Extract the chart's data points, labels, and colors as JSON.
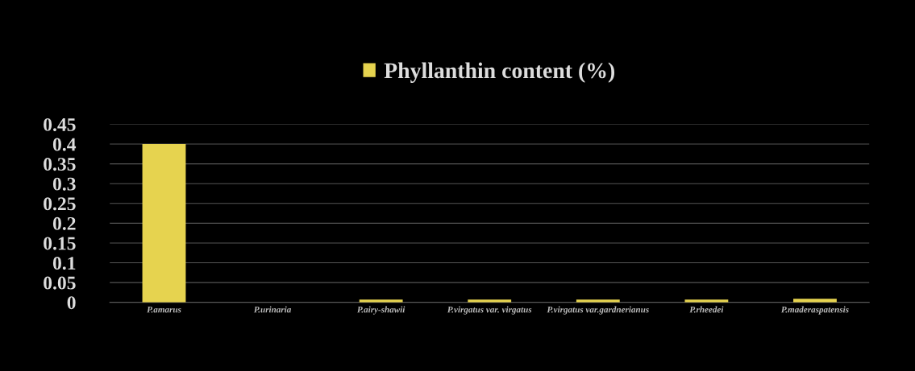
{
  "chart_data": {
    "type": "bar",
    "categories": [
      "P.amarus",
      "P.urinaria",
      "P.airy-shawii",
      "P.virgatus var. virgatus",
      "P.virgatus var.gardnerianus",
      "P.rheedei",
      "P.maderaspatensis"
    ],
    "series": [
      {
        "name": "Phyllanthin content (%)",
        "color": "#e6d34f",
        "values": [
          0.4,
          0,
          0.007,
          0.007,
          0.007,
          0.007,
          0.009
        ]
      }
    ],
    "ylim": [
      0,
      0.45
    ],
    "yticks": [
      0,
      0.05,
      0.1,
      0.15,
      0.2,
      0.25,
      0.3,
      0.35,
      0.4,
      0.45
    ],
    "grid": "y",
    "legend": "top"
  }
}
